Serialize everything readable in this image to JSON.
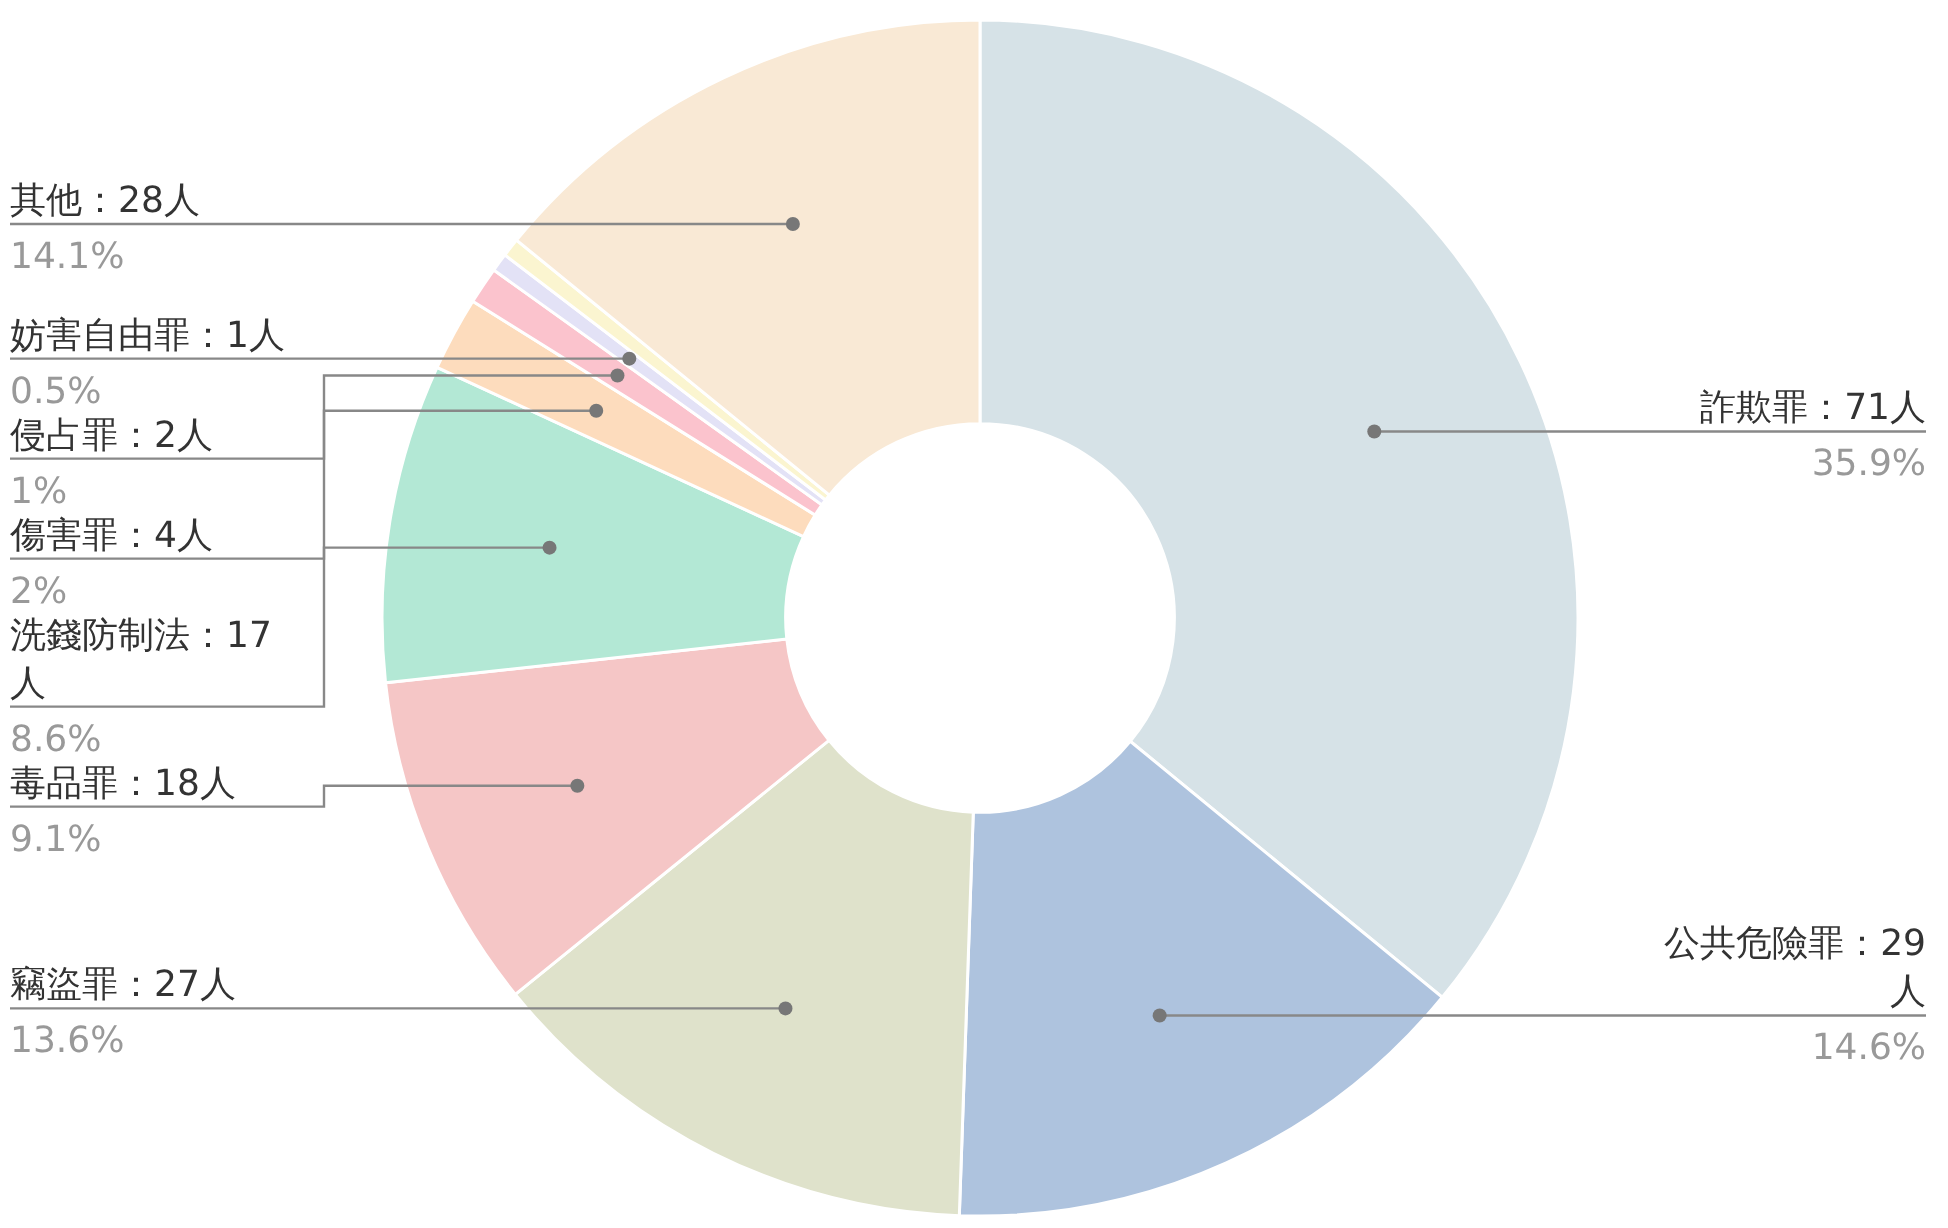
{
  "chart_data": {
    "type": "donut",
    "categories": [
      "詐欺罪：71人",
      "公共危險罪：29人",
      "竊盜罪：27人",
      "毒品罪：18人",
      "洗錢防制法：17人",
      "傷害罪：4人",
      "侵占罪：2人",
      "妨害自由罪：1人",
      null,
      "其他：28人"
    ],
    "values": [
      35.9,
      14.6,
      13.6,
      9.1,
      8.6,
      2,
      1,
      0.5,
      0.5,
      14.1
    ],
    "value_labels": [
      "35.9%",
      "14.6%",
      "13.6%",
      "9.1%",
      "8.6%",
      "2%",
      "1%",
      "0.5%",
      null,
      "14.1%"
    ],
    "colors": [
      "#d6e2e7",
      "#aec3de",
      "#dfe2cb",
      "#f5c6c6",
      "#b3e8d5",
      "#fddcbd",
      "#fbc3cd",
      "#e3e2f6",
      "#fbf5d0",
      "#f9e9d5"
    ]
  }
}
